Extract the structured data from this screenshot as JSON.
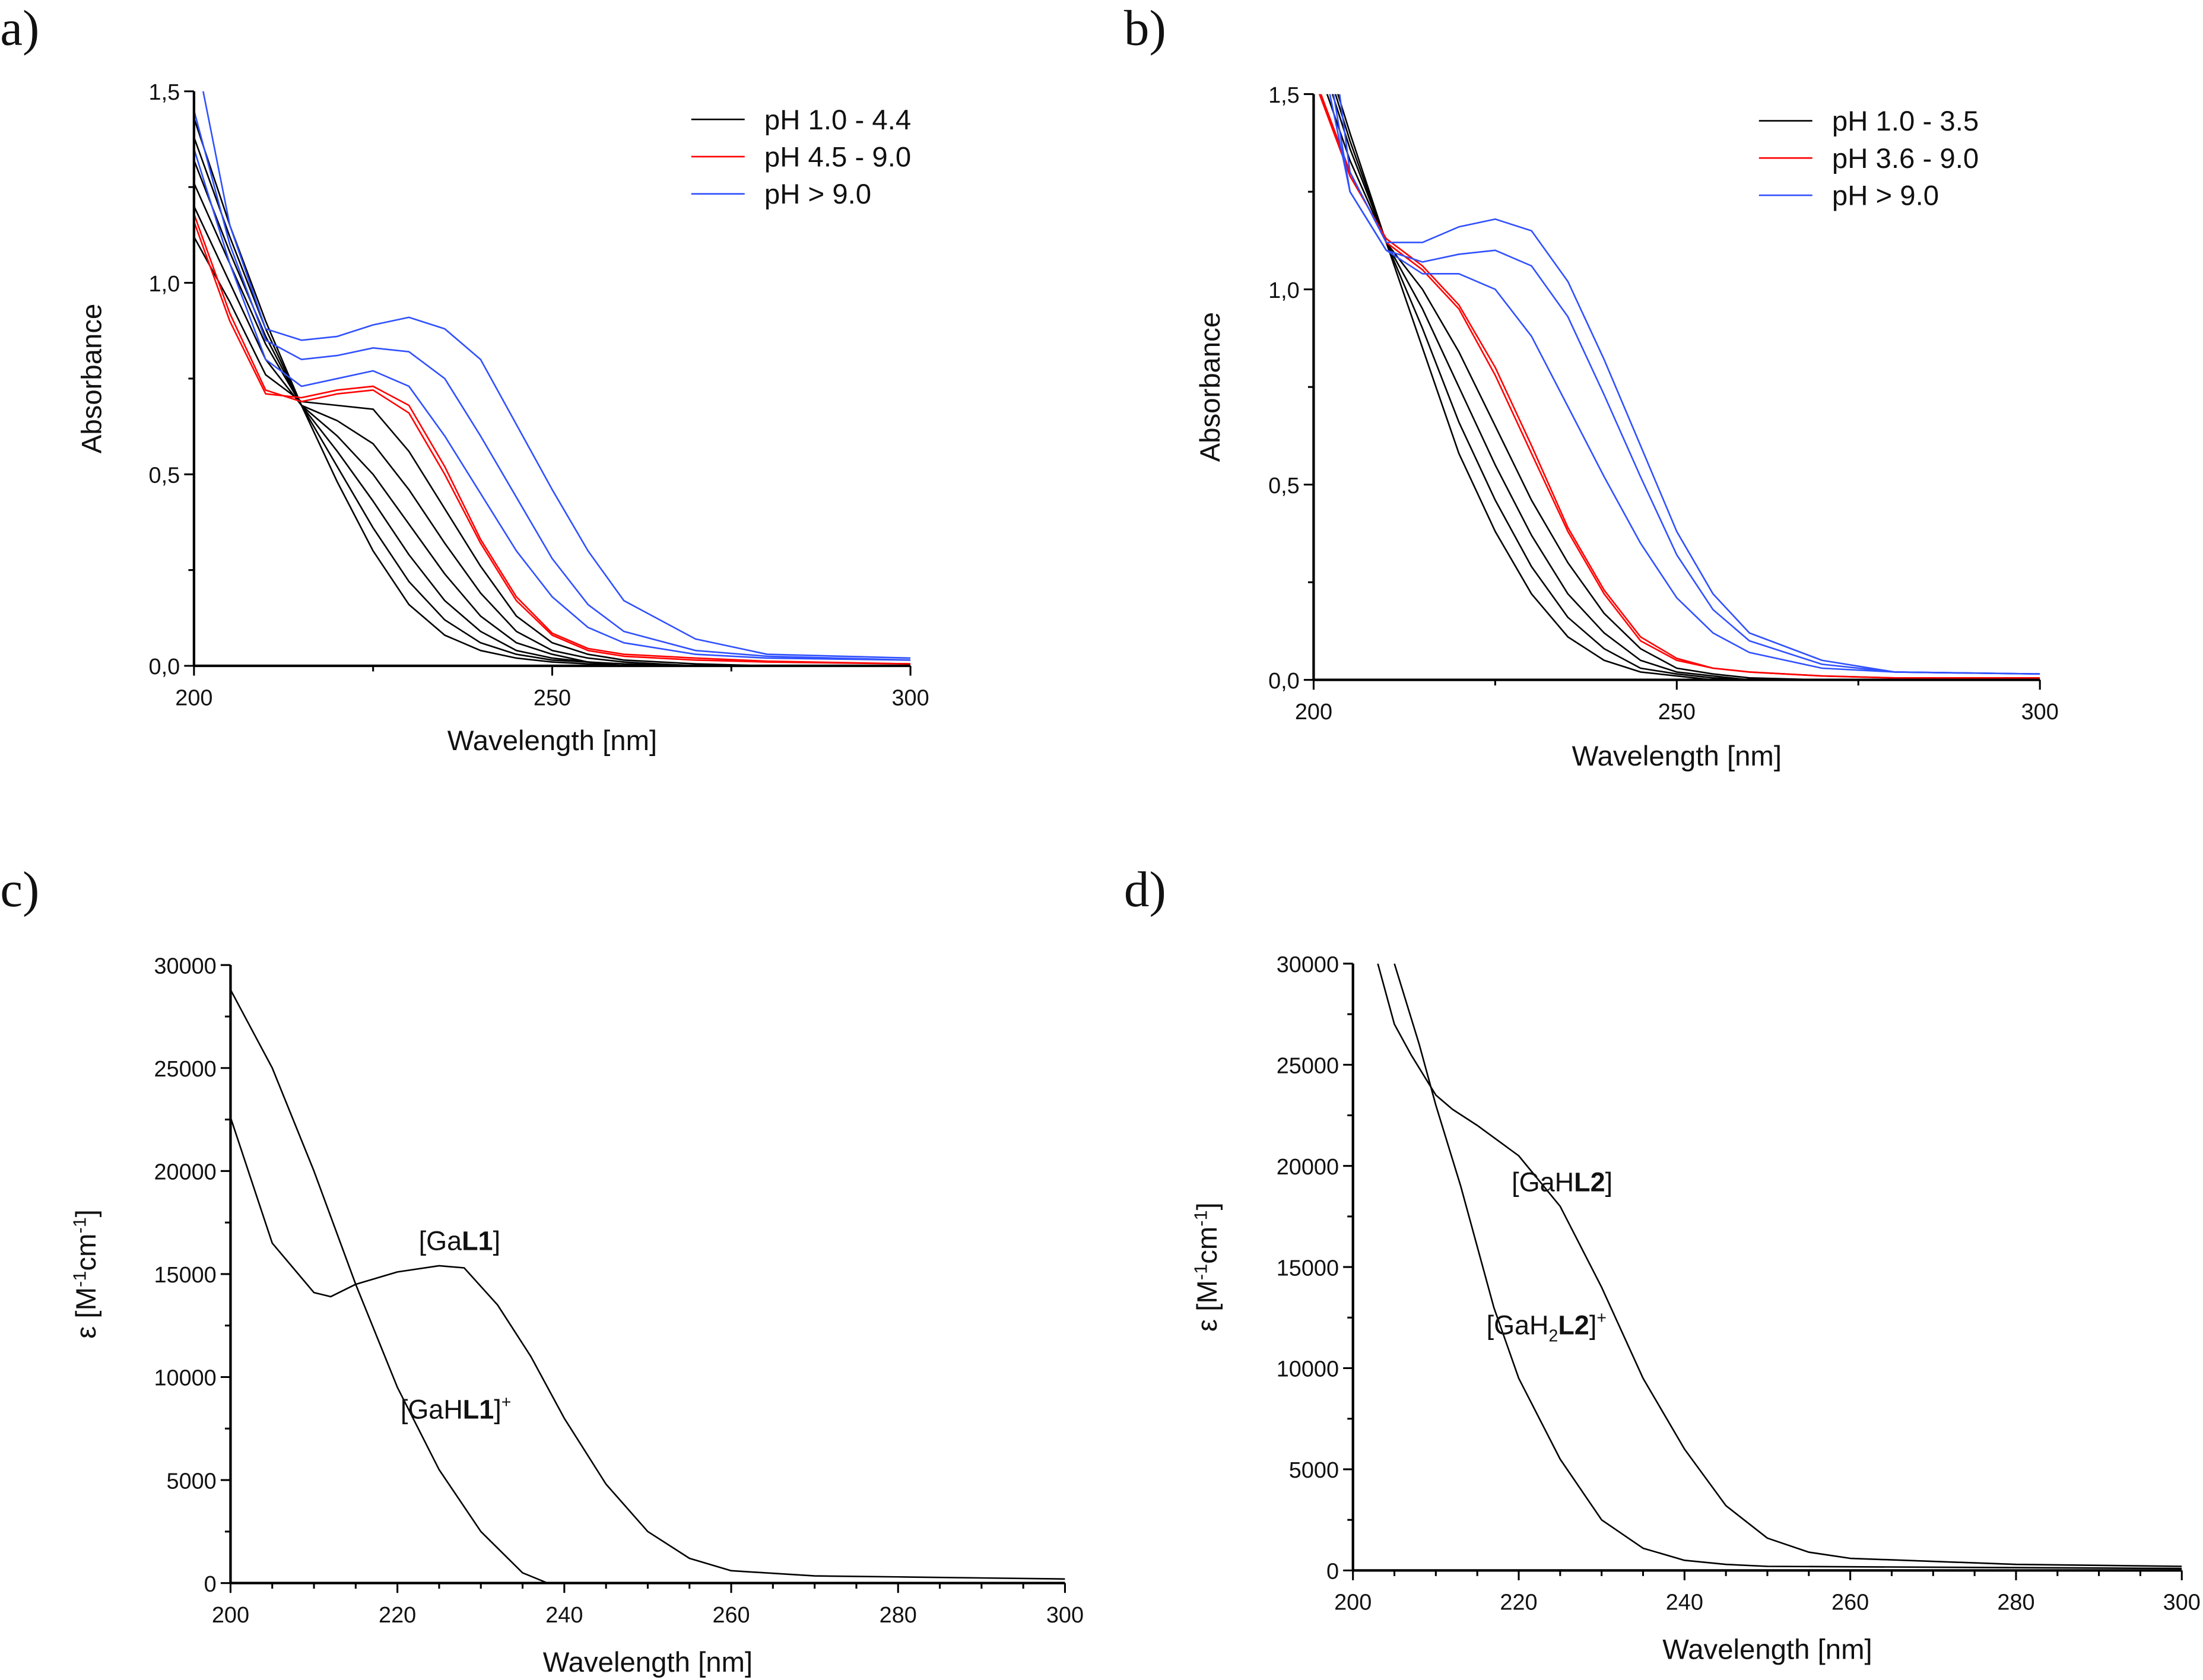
{
  "chart_data": [
    {
      "panel": "a)",
      "type": "line",
      "xlabel": "Wavelength [nm]",
      "ylabel": "Absorbance",
      "xlim": [
        200,
        300
      ],
      "ylim": [
        0,
        1.5
      ],
      "xticks": [
        200,
        250,
        300
      ],
      "xtick_labels": [
        "200",
        "250",
        "300"
      ],
      "yticks": [
        0,
        0.5,
        1.0,
        1.5
      ],
      "ytick_labels": [
        "0,0",
        "0,5",
        "1,0",
        "1,5"
      ],
      "legend_position": "top-right",
      "legend": [
        {
          "label": "pH 1.0 - 4.4",
          "color": "#000000"
        },
        {
          "label": "pH 4.5 - 9.0",
          "color": "#ff0000"
        },
        {
          "label": "pH > 9.0",
          "color": "#3050ff"
        }
      ],
      "x": [
        200,
        205,
        210,
        215,
        220,
        225,
        230,
        235,
        240,
        245,
        250,
        255,
        260,
        270,
        280,
        300
      ],
      "series": [
        {
          "group": 0,
          "values": [
            1.43,
            1.15,
            0.9,
            0.68,
            0.48,
            0.3,
            0.16,
            0.08,
            0.04,
            0.02,
            0.01,
            0.005,
            0,
            0,
            0,
            0
          ]
        },
        {
          "group": 0,
          "values": [
            1.38,
            1.12,
            0.88,
            0.68,
            0.52,
            0.36,
            0.22,
            0.12,
            0.06,
            0.03,
            0.015,
            0.01,
            0,
            0,
            0,
            0
          ]
        },
        {
          "group": 0,
          "values": [
            1.32,
            1.08,
            0.86,
            0.68,
            0.56,
            0.43,
            0.29,
            0.17,
            0.09,
            0.04,
            0.02,
            0.01,
            0,
            0,
            0,
            0
          ]
        },
        {
          "group": 0,
          "values": [
            1.26,
            1.05,
            0.84,
            0.68,
            0.6,
            0.5,
            0.37,
            0.24,
            0.13,
            0.06,
            0.03,
            0.01,
            0.005,
            0,
            0,
            0
          ]
        },
        {
          "group": 0,
          "values": [
            1.2,
            1.0,
            0.8,
            0.68,
            0.64,
            0.58,
            0.46,
            0.32,
            0.19,
            0.09,
            0.04,
            0.02,
            0.01,
            0,
            0,
            0
          ]
        },
        {
          "group": 0,
          "values": [
            1.12,
            0.95,
            0.76,
            0.69,
            0.68,
            0.67,
            0.56,
            0.41,
            0.26,
            0.13,
            0.06,
            0.03,
            0.015,
            0.005,
            0,
            0
          ]
        },
        {
          "group": 1,
          "values": [
            1.18,
            0.92,
            0.72,
            0.69,
            0.71,
            0.72,
            0.66,
            0.5,
            0.32,
            0.17,
            0.08,
            0.04,
            0.025,
            0.015,
            0.01,
            0.005
          ]
        },
        {
          "group": 1,
          "values": [
            1.16,
            0.9,
            0.71,
            0.7,
            0.72,
            0.73,
            0.68,
            0.52,
            0.33,
            0.18,
            0.085,
            0.045,
            0.03,
            0.02,
            0.012,
            0.005
          ]
        },
        {
          "group": 2,
          "values": [
            1.62,
            1.15,
            0.88,
            0.85,
            0.86,
            0.89,
            0.91,
            0.88,
            0.8,
            0.63,
            0.46,
            0.3,
            0.17,
            0.07,
            0.03,
            0.02
          ]
        },
        {
          "group": 2,
          "values": [
            1.45,
            1.1,
            0.85,
            0.8,
            0.81,
            0.83,
            0.82,
            0.75,
            0.6,
            0.44,
            0.28,
            0.16,
            0.09,
            0.04,
            0.025,
            0.015
          ]
        },
        {
          "group": 2,
          "values": [
            1.35,
            1.05,
            0.8,
            0.73,
            0.75,
            0.77,
            0.73,
            0.6,
            0.45,
            0.3,
            0.18,
            0.1,
            0.06,
            0.03,
            0.02,
            0.015
          ]
        }
      ]
    },
    {
      "panel": "b)",
      "type": "line",
      "xlabel": "Wavelength [nm]",
      "ylabel": "Absorbance",
      "xlim": [
        200,
        300
      ],
      "ylim": [
        0,
        1.5
      ],
      "xticks": [
        200,
        250,
        300
      ],
      "xtick_labels": [
        "200",
        "250",
        "300"
      ],
      "yticks": [
        0,
        0.5,
        1.0,
        1.5
      ],
      "ytick_labels": [
        "0,0",
        "0,5",
        "1,0",
        "1,5"
      ],
      "legend_position": "top-right",
      "legend": [
        {
          "label": "pH 1.0 - 3.5",
          "color": "#000000"
        },
        {
          "label": "pH 3.6 - 9.0",
          "color": "#ff0000"
        },
        {
          "label": "pH > 9.0",
          "color": "#3050ff"
        }
      ],
      "x": [
        200,
        205,
        210,
        215,
        220,
        225,
        230,
        235,
        240,
        245,
        250,
        255,
        260,
        270,
        280,
        300
      ],
      "series": [
        {
          "group": 0,
          "values": [
            1.7,
            1.4,
            1.12,
            0.85,
            0.58,
            0.38,
            0.22,
            0.11,
            0.05,
            0.02,
            0.01,
            0,
            0,
            0,
            0,
            0
          ]
        },
        {
          "group": 0,
          "values": [
            1.68,
            1.38,
            1.12,
            0.9,
            0.66,
            0.46,
            0.29,
            0.16,
            0.08,
            0.03,
            0.015,
            0.005,
            0,
            0,
            0,
            0
          ]
        },
        {
          "group": 0,
          "values": [
            1.65,
            1.36,
            1.12,
            0.95,
            0.75,
            0.55,
            0.37,
            0.22,
            0.12,
            0.05,
            0.02,
            0.01,
            0,
            0,
            0,
            0
          ]
        },
        {
          "group": 0,
          "values": [
            1.6,
            1.33,
            1.12,
            1.0,
            0.84,
            0.65,
            0.46,
            0.3,
            0.17,
            0.08,
            0.03,
            0.015,
            0.005,
            0,
            0,
            0
          ]
        },
        {
          "group": 1,
          "values": [
            1.55,
            1.3,
            1.12,
            1.05,
            0.95,
            0.78,
            0.58,
            0.38,
            0.22,
            0.1,
            0.05,
            0.03,
            0.02,
            0.01,
            0.005,
            0.005
          ]
        },
        {
          "group": 1,
          "values": [
            1.54,
            1.29,
            1.13,
            1.06,
            0.96,
            0.8,
            0.6,
            0.39,
            0.23,
            0.11,
            0.055,
            0.03,
            0.02,
            0.01,
            0.005,
            0.005
          ]
        },
        {
          "group": 2,
          "values": [
            2.0,
            1.3,
            1.12,
            1.12,
            1.16,
            1.18,
            1.15,
            1.02,
            0.82,
            0.6,
            0.38,
            0.22,
            0.12,
            0.05,
            0.02,
            0.015
          ]
        },
        {
          "group": 2,
          "values": [
            1.8,
            1.25,
            1.1,
            1.07,
            1.09,
            1.1,
            1.06,
            0.93,
            0.73,
            0.52,
            0.32,
            0.18,
            0.1,
            0.04,
            0.02,
            0.015
          ]
        },
        {
          "group": 2,
          "values": [
            1.7,
            1.25,
            1.1,
            1.04,
            1.04,
            1.0,
            0.88,
            0.7,
            0.52,
            0.35,
            0.21,
            0.12,
            0.07,
            0.03,
            0.02,
            0.015
          ]
        }
      ]
    },
    {
      "panel": "c)",
      "type": "line",
      "xlabel": "Wavelength [nm]",
      "ylabel": {
        "pre": "ε [M",
        "sup1": "-1",
        "mid": "cm",
        "sup2": "-1",
        "post": "]"
      },
      "xlim": [
        200,
        300
      ],
      "ylim": [
        0,
        30000
      ],
      "xticks": [
        200,
        220,
        240,
        260,
        280,
        300
      ],
      "xtick_labels": [
        "200",
        "220",
        "240",
        "260",
        "280",
        "300"
      ],
      "yticks": [
        0,
        5000,
        10000,
        15000,
        20000,
        25000,
        30000
      ],
      "ytick_labels": [
        "0",
        "5000",
        "10000",
        "15000",
        "20000",
        "25000",
        "30000"
      ],
      "series": [
        {
          "name": "[GaL1]",
          "label": {
            "pre": "[Ga",
            "bold": "L1",
            "post": "]",
            "sup": ""
          },
          "x": [
            200,
            205,
            210,
            212,
            215,
            220,
            225,
            228,
            232,
            236,
            240,
            245,
            250,
            255,
            260,
            270,
            280,
            300
          ],
          "values": [
            22600,
            16500,
            14100,
            13900,
            14500,
            15100,
            15400,
            15300,
            13500,
            11000,
            8000,
            4800,
            2500,
            1200,
            600,
            350,
            300,
            200
          ]
        },
        {
          "name": "[GaHL1]+",
          "label": {
            "pre": "[GaH",
            "bold": "L1",
            "post": "]",
            "sup": "+"
          },
          "x": [
            200,
            205,
            210,
            215,
            220,
            225,
            230,
            235,
            238,
            260,
            300
          ],
          "values": [
            28800,
            25000,
            20000,
            14500,
            9500,
            5500,
            2500,
            500,
            0,
            0,
            0
          ]
        }
      ]
    },
    {
      "panel": "d)",
      "type": "line",
      "xlabel": "Wavelength [nm]",
      "ylabel": {
        "pre": "ε [M",
        "sup1": "-1",
        "mid": "cm",
        "sup2": "-1",
        "post": "]"
      },
      "xlim": [
        200,
        300
      ],
      "ylim": [
        0,
        30000
      ],
      "xticks": [
        200,
        220,
        240,
        260,
        280,
        300
      ],
      "xtick_labels": [
        "200",
        "220",
        "240",
        "260",
        "280",
        "300"
      ],
      "yticks": [
        0,
        5000,
        10000,
        15000,
        20000,
        25000,
        30000
      ],
      "ytick_labels": [
        "0",
        "5000",
        "10000",
        "15000",
        "20000",
        "25000",
        "30000"
      ],
      "series": [
        {
          "name": "[GaHL2]",
          "label": {
            "pre": "[GaH",
            "sub": "",
            "bold": "L2",
            "post": "]",
            "sup": ""
          },
          "x": [
            203,
            205,
            207,
            210,
            212,
            215,
            220,
            225,
            230,
            235,
            240,
            245,
            250,
            255,
            260,
            280,
            300
          ],
          "values": [
            30000,
            27000,
            25500,
            23500,
            22800,
            22000,
            20500,
            18000,
            14000,
            9500,
            6000,
            3200,
            1600,
            900,
            600,
            300,
            200
          ]
        },
        {
          "name": "[GaH2L2]+",
          "label": {
            "pre": "[GaH",
            "sub": "2",
            "bold": "L2",
            "post": "]",
            "sup": "+"
          },
          "x": [
            205,
            208,
            210,
            213,
            217,
            220,
            225,
            230,
            235,
            240,
            245,
            250,
            300
          ],
          "values": [
            30000,
            26000,
            23000,
            19000,
            13000,
            9500,
            5500,
            2500,
            1100,
            500,
            300,
            200,
            100
          ]
        }
      ]
    }
  ]
}
